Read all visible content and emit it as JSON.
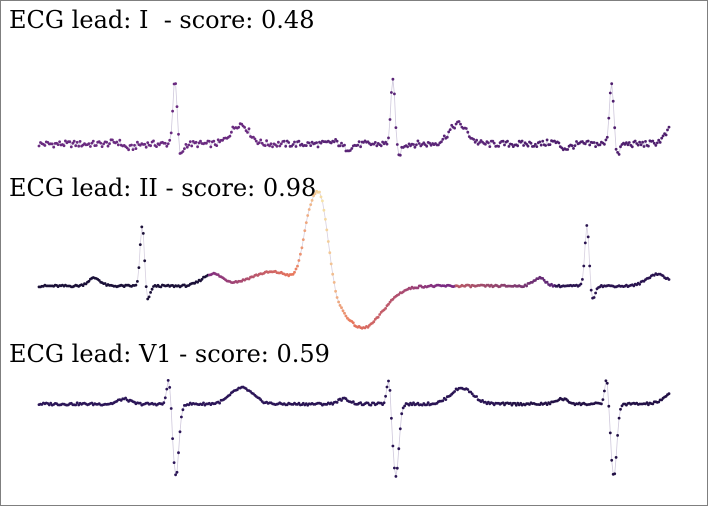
{
  "chart_data": [
    {
      "type": "scatter",
      "title": "ECG lead: I  - score: 0.48",
      "lead": "I",
      "score": 0.48,
      "colormap": "magma",
      "beats": [
        {
          "r_x": 0.216,
          "color": "#6a2b80"
        },
        {
          "r_x": 0.562,
          "color": "#5a2577"
        },
        {
          "r_x": 0.909,
          "color": "#4f1f6e"
        }
      ]
    },
    {
      "type": "scatter",
      "title": "ECG lead: II - score: 0.98",
      "lead": "II",
      "score": 0.98,
      "colormap": "magma",
      "beats": [
        {
          "r_x": 0.164,
          "color": "#1b1038"
        },
        {
          "r_x": 0.87,
          "color": "#2a1450"
        }
      ],
      "anomaly": {
        "x_start": 0.27,
        "x_end": 0.66
      }
    },
    {
      "type": "scatter",
      "title": "ECG lead: V1 - score: 0.59",
      "lead": "V1",
      "score": 0.59,
      "colormap": "magma",
      "beats": [
        {
          "r_x": 0.211,
          "color": "#2c1658"
        },
        {
          "r_x": 0.56,
          "color": "#2a1554"
        },
        {
          "r_x": 0.906,
          "color": "#231146"
        }
      ]
    }
  ]
}
